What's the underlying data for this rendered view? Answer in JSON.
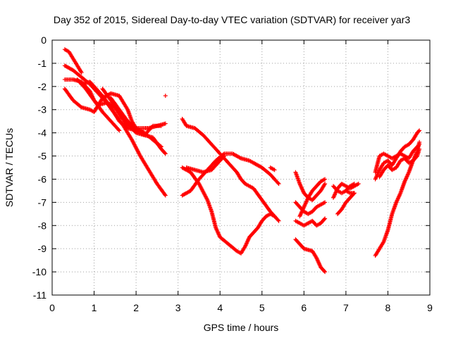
{
  "chart_data": {
    "type": "scatter",
    "title": "Day 352 of 2015, Sidereal Day-to-day VTEC variation (SDTVAR) for receiver yar3",
    "xlabel": "GPS time / hours",
    "ylabel": "SDTVAR / TECUs",
    "xlim": [
      0,
      9
    ],
    "ylim": [
      -11,
      0
    ],
    "xticks": [
      "0",
      "1",
      "2",
      "3",
      "4",
      "5",
      "6",
      "7",
      "8",
      "9"
    ],
    "yticks": [
      "0",
      "-1",
      "-2",
      "-3",
      "-4",
      "-5",
      "-6",
      "-7",
      "-8",
      "-9",
      "-10",
      "-11"
    ],
    "grid": true,
    "marker": "+",
    "color": "#ff0000",
    "series": [
      {
        "points": [
          [
            0.3,
            -0.4
          ],
          [
            0.4,
            -0.5
          ],
          [
            0.5,
            -0.8
          ],
          [
            0.6,
            -1.1
          ],
          [
            0.7,
            -1.4
          ]
        ]
      },
      {
        "points": [
          [
            0.3,
            -1.1
          ],
          [
            0.5,
            -1.3
          ],
          [
            0.7,
            -1.6
          ],
          [
            0.9,
            -1.9
          ],
          [
            1.1,
            -2.3
          ],
          [
            1.3,
            -2.7
          ],
          [
            1.5,
            -3.2
          ],
          [
            1.7,
            -3.7
          ],
          [
            1.9,
            -4.3
          ],
          [
            2.1,
            -5.0
          ],
          [
            2.3,
            -5.6
          ],
          [
            2.5,
            -6.2
          ],
          [
            2.7,
            -6.7
          ]
        ]
      },
      {
        "points": [
          [
            0.3,
            -1.7
          ],
          [
            0.5,
            -1.7
          ],
          [
            0.7,
            -1.8
          ],
          [
            0.9,
            -2.2
          ],
          [
            1.0,
            -2.6
          ],
          [
            1.1,
            -2.8
          ],
          [
            1.3,
            -2.7
          ],
          [
            1.5,
            -2.9
          ],
          [
            1.7,
            -3.4
          ],
          [
            1.9,
            -3.8
          ],
          [
            2.0,
            -4.0
          ],
          [
            2.2,
            -4.1
          ],
          [
            2.4,
            -4.2
          ],
          [
            2.6,
            -4.7
          ],
          [
            2.7,
            -4.9
          ]
        ]
      },
      {
        "points": [
          [
            0.3,
            -2.1
          ],
          [
            0.5,
            -2.6
          ],
          [
            0.7,
            -2.9
          ],
          [
            0.9,
            -3.0
          ],
          [
            1.0,
            -3.1
          ],
          [
            1.1,
            -2.8
          ],
          [
            1.2,
            -2.5
          ],
          [
            1.4,
            -2.3
          ],
          [
            1.6,
            -2.4
          ],
          [
            1.7,
            -2.7
          ],
          [
            1.8,
            -3.0
          ],
          [
            1.9,
            -3.5
          ],
          [
            2.0,
            -3.8
          ],
          [
            2.2,
            -3.8
          ],
          [
            2.3,
            -3.8
          ],
          [
            2.5,
            -3.7
          ],
          [
            2.7,
            -3.6
          ]
        ]
      },
      {
        "points": [
          [
            0.7,
            -1.9
          ],
          [
            0.9,
            -1.8
          ],
          [
            1.0,
            -2.0
          ],
          [
            1.2,
            -2.4
          ],
          [
            1.4,
            -2.9
          ],
          [
            1.6,
            -3.5
          ],
          [
            1.8,
            -3.8
          ],
          [
            2.0,
            -3.9
          ],
          [
            2.2,
            -4.1
          ],
          [
            2.4,
            -3.7
          ],
          [
            2.6,
            -3.7
          ]
        ]
      },
      {
        "points": [
          [
            1.4,
            -2.5
          ],
          [
            1.6,
            -3.0
          ],
          [
            1.8,
            -3.5
          ],
          [
            2.0,
            -3.8
          ],
          [
            2.2,
            -4.0
          ],
          [
            2.4,
            -4.3
          ],
          [
            2.6,
            -4.6
          ]
        ]
      },
      {
        "points": [
          [
            0.6,
            -1.7
          ],
          [
            0.8,
            -2.1
          ],
          [
            1.0,
            -2.6
          ],
          [
            1.2,
            -3.1
          ],
          [
            1.4,
            -3.5
          ],
          [
            1.6,
            -3.9
          ]
        ]
      },
      {
        "points": [
          [
            1.2,
            -2.1
          ],
          [
            1.4,
            -2.6
          ],
          [
            1.6,
            -3.2
          ],
          [
            1.8,
            -3.7
          ]
        ]
      },
      {
        "points": [
          [
            2.7,
            -2.4
          ]
        ]
      },
      {
        "points": [
          [
            3.1,
            -3.4
          ],
          [
            3.2,
            -3.7
          ],
          [
            3.4,
            -3.8
          ],
          [
            3.6,
            -4.1
          ],
          [
            3.8,
            -4.5
          ],
          [
            4.0,
            -4.9
          ],
          [
            4.2,
            -5.3
          ],
          [
            4.4,
            -5.7
          ],
          [
            4.5,
            -6.0
          ],
          [
            4.6,
            -6.2
          ],
          [
            4.7,
            -6.3
          ],
          [
            4.8,
            -6.4
          ],
          [
            5.0,
            -6.9
          ],
          [
            5.2,
            -7.4
          ],
          [
            5.4,
            -7.8
          ]
        ]
      },
      {
        "points": [
          [
            3.1,
            -5.5
          ],
          [
            3.3,
            -5.7
          ],
          [
            3.5,
            -6.2
          ],
          [
            3.7,
            -6.9
          ],
          [
            3.8,
            -7.4
          ],
          [
            3.9,
            -8.1
          ],
          [
            4.0,
            -8.5
          ],
          [
            4.2,
            -8.8
          ],
          [
            4.4,
            -9.1
          ],
          [
            4.5,
            -9.2
          ],
          [
            4.6,
            -8.9
          ],
          [
            4.7,
            -8.5
          ],
          [
            4.8,
            -8.3
          ],
          [
            4.9,
            -8.1
          ],
          [
            5.0,
            -7.8
          ],
          [
            5.1,
            -7.6
          ],
          [
            5.2,
            -7.5
          ],
          [
            5.3,
            -7.6
          ]
        ]
      },
      {
        "points": [
          [
            3.1,
            -6.7
          ],
          [
            3.3,
            -6.5
          ],
          [
            3.5,
            -6.0
          ],
          [
            3.7,
            -5.6
          ],
          [
            3.9,
            -5.2
          ],
          [
            4.1,
            -4.9
          ],
          [
            4.3,
            -4.9
          ],
          [
            4.5,
            -5.1
          ],
          [
            4.7,
            -5.2
          ],
          [
            4.8,
            -5.3
          ],
          [
            5.0,
            -5.5
          ],
          [
            5.2,
            -5.8
          ],
          [
            5.4,
            -6.2
          ]
        ]
      },
      {
        "points": [
          [
            3.2,
            -5.5
          ],
          [
            3.4,
            -5.6
          ],
          [
            3.6,
            -5.7
          ],
          [
            3.8,
            -5.6
          ],
          [
            4.0,
            -5.2
          ],
          [
            4.1,
            -5.0
          ]
        ]
      },
      {
        "points": [
          [
            5.2,
            -5.5
          ],
          [
            5.3,
            -5.6
          ]
        ]
      },
      {
        "points": [
          [
            5.8,
            -5.7
          ],
          [
            5.9,
            -6.2
          ],
          [
            6.0,
            -6.6
          ],
          [
            6.1,
            -6.8
          ],
          [
            6.2,
            -6.9
          ],
          [
            6.3,
            -6.7
          ],
          [
            6.4,
            -6.5
          ],
          [
            6.5,
            -6.2
          ]
        ]
      },
      {
        "points": [
          [
            5.8,
            -7.0
          ],
          [
            5.9,
            -7.2
          ],
          [
            6.0,
            -7.4
          ],
          [
            6.1,
            -7.5
          ],
          [
            6.2,
            -7.4
          ],
          [
            6.3,
            -7.2
          ],
          [
            6.4,
            -7.1
          ],
          [
            6.5,
            -7.0
          ]
        ]
      },
      {
        "points": [
          [
            5.8,
            -7.8
          ],
          [
            5.9,
            -7.9
          ],
          [
            6.0,
            -8.0
          ],
          [
            6.1,
            -7.9
          ],
          [
            6.2,
            -7.8
          ],
          [
            6.3,
            -8.0
          ],
          [
            6.4,
            -7.9
          ],
          [
            6.5,
            -7.7
          ]
        ]
      },
      {
        "points": [
          [
            5.8,
            -8.6
          ],
          [
            5.9,
            -8.8
          ],
          [
            6.0,
            -9.0
          ],
          [
            6.2,
            -9.1
          ],
          [
            6.3,
            -9.4
          ],
          [
            6.4,
            -9.8
          ],
          [
            6.5,
            -10.0
          ]
        ]
      },
      {
        "points": [
          [
            5.9,
            -7.6
          ],
          [
            6.0,
            -7.2
          ],
          [
            6.1,
            -6.8
          ],
          [
            6.2,
            -6.5
          ],
          [
            6.3,
            -6.3
          ],
          [
            6.4,
            -6.1
          ],
          [
            6.5,
            -6.0
          ]
        ]
      },
      {
        "points": [
          [
            6.7,
            -6.3
          ],
          [
            6.8,
            -6.5
          ],
          [
            6.9,
            -6.6
          ],
          [
            7.0,
            -6.5
          ],
          [
            7.1,
            -6.3
          ],
          [
            7.2,
            -6.2
          ]
        ]
      },
      {
        "points": [
          [
            6.8,
            -7.5
          ],
          [
            6.9,
            -7.3
          ],
          [
            7.0,
            -7.0
          ],
          [
            7.1,
            -6.8
          ],
          [
            7.2,
            -6.6
          ]
        ]
      },
      {
        "points": [
          [
            6.7,
            -6.8
          ],
          [
            6.8,
            -6.4
          ],
          [
            6.9,
            -6.2
          ],
          [
            7.0,
            -6.3
          ],
          [
            7.1,
            -6.4
          ],
          [
            7.2,
            -6.3
          ],
          [
            7.3,
            -6.2
          ]
        ]
      },
      {
        "points": [
          [
            7.0,
            -6.5
          ],
          [
            7.1,
            -6.6
          ],
          [
            7.2,
            -6.6
          ]
        ]
      },
      {
        "points": [
          [
            7.7,
            -9.3
          ],
          [
            7.8,
            -9.0
          ],
          [
            7.9,
            -8.7
          ],
          [
            8.0,
            -8.2
          ],
          [
            8.1,
            -7.5
          ],
          [
            8.2,
            -7.0
          ],
          [
            8.3,
            -6.6
          ],
          [
            8.4,
            -6.1
          ],
          [
            8.5,
            -5.7
          ],
          [
            8.6,
            -5.2
          ],
          [
            8.7,
            -4.8
          ],
          [
            8.75,
            -4.4
          ]
        ]
      },
      {
        "points": [
          [
            7.7,
            -6.0
          ],
          [
            7.8,
            -5.6
          ],
          [
            7.9,
            -5.3
          ],
          [
            8.0,
            -5.2
          ],
          [
            8.1,
            -5.4
          ],
          [
            8.2,
            -5.1
          ],
          [
            8.3,
            -4.8
          ],
          [
            8.4,
            -4.6
          ],
          [
            8.5,
            -4.5
          ],
          [
            8.6,
            -4.3
          ],
          [
            8.7,
            -4.0
          ],
          [
            8.75,
            -3.9
          ]
        ]
      },
      {
        "points": [
          [
            7.7,
            -5.7
          ],
          [
            7.8,
            -5.0
          ],
          [
            7.9,
            -4.9
          ],
          [
            8.0,
            -5.0
          ],
          [
            8.1,
            -5.1
          ],
          [
            8.2,
            -5.0
          ],
          [
            8.3,
            -4.9
          ],
          [
            8.4,
            -5.0
          ],
          [
            8.5,
            -5.1
          ],
          [
            8.6,
            -4.8
          ],
          [
            8.7,
            -4.6
          ],
          [
            8.75,
            -4.5
          ]
        ]
      },
      {
        "points": [
          [
            7.8,
            -5.9
          ],
          [
            7.9,
            -5.6
          ],
          [
            8.0,
            -5.4
          ],
          [
            8.1,
            -5.6
          ],
          [
            8.2,
            -5.5
          ],
          [
            8.3,
            -5.2
          ],
          [
            8.4,
            -5.1
          ],
          [
            8.5,
            -5.3
          ],
          [
            8.6,
            -5.2
          ],
          [
            8.7,
            -5.0
          ],
          [
            8.75,
            -4.7
          ]
        ]
      }
    ]
  }
}
